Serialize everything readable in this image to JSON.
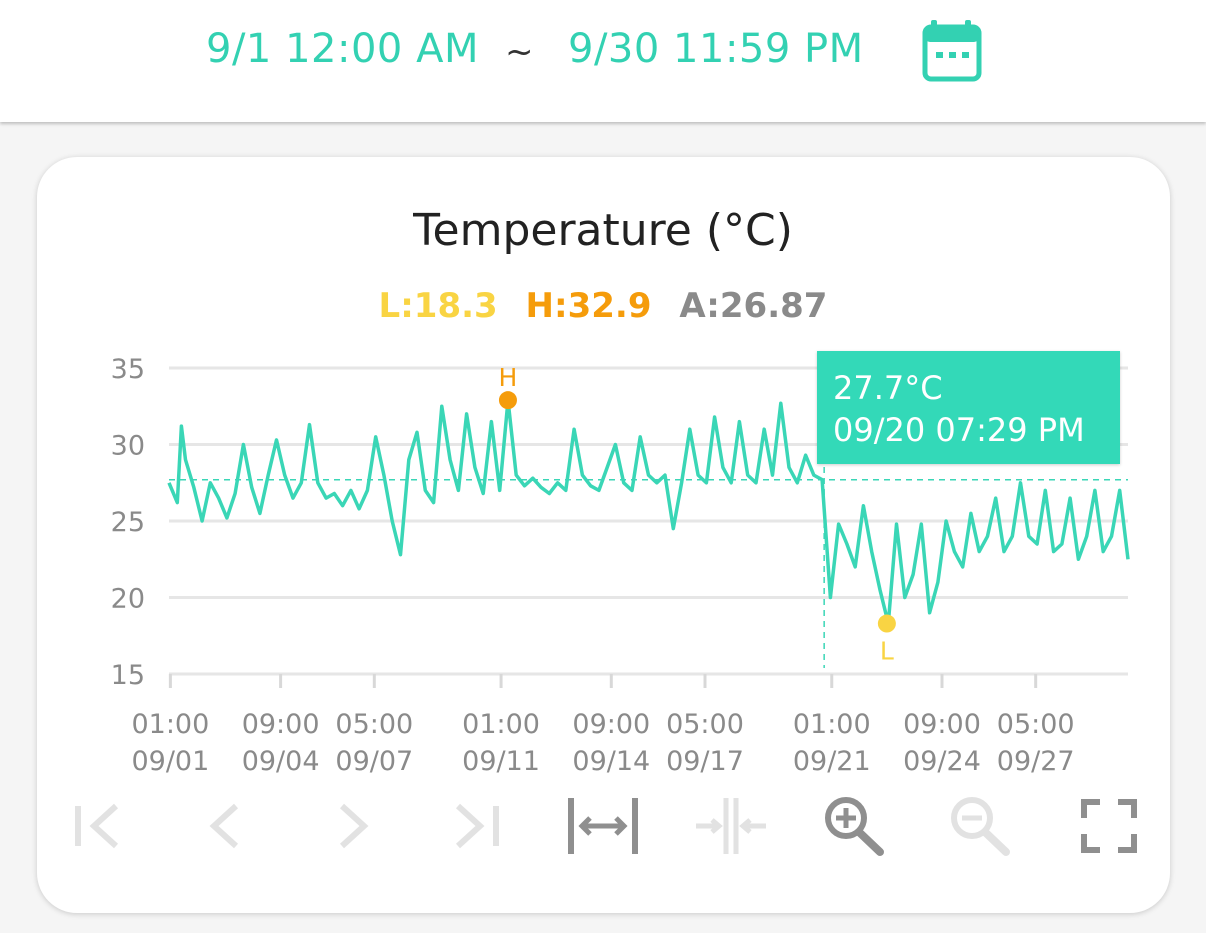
{
  "header": {
    "range_start": "9/1 12:00 AM",
    "range_separator": "~",
    "range_end": "9/30 11:59 PM",
    "calendar_icon": "calendar-icon"
  },
  "stats": {
    "low_label": "L:18.3",
    "high_label": "H:32.9",
    "avg_label": "A:26.87"
  },
  "tooltip": {
    "value": "27.7°C",
    "time": "09/20 07:29 PM"
  },
  "toolbar": {
    "first_icon": "first-page-icon",
    "prev_icon": "chevron-left-icon",
    "next_icon": "chevron-right-icon",
    "last_icon": "last-page-icon",
    "expand_icon": "expand-horizontal-icon",
    "shrink_icon": "shrink-horizontal-icon",
    "zoom_in_icon": "zoom-in-icon",
    "zoom_out_icon": "zoom-out-icon",
    "fullscreen_icon": "fullscreen-icon"
  },
  "colors": {
    "accent": "#33d1b2",
    "line": "#3ad6b6",
    "low": "#f9d443",
    "high": "#f59c0b",
    "avg": "#8a8a8a",
    "grid": "#e6e6e6",
    "axis_text": "#8a8a8a"
  },
  "chart_data": {
    "type": "line",
    "title": "Temperature (°C)",
    "xlabel": "",
    "ylabel": "",
    "ylim": [
      15,
      35
    ],
    "yticks": [
      15,
      20,
      25,
      30,
      35
    ],
    "xlim": [
      "2024-09-01 00:00",
      "2024-09-30 00:00"
    ],
    "xticks": [
      {
        "x": "2024-09-01 01:00",
        "line1": "01:00",
        "line2": "09/01"
      },
      {
        "x": "2024-09-04 09:00",
        "line1": "09:00",
        "line2": "09/04"
      },
      {
        "x": "2024-09-07 05:00",
        "line1": "05:00",
        "line2": "09/07"
      },
      {
        "x": "2024-09-11 01:00",
        "line1": "01:00",
        "line2": "09/11"
      },
      {
        "x": "2024-09-14 09:00",
        "line1": "09:00",
        "line2": "09/14"
      },
      {
        "x": "2024-09-17 05:00",
        "line1": "05:00",
        "line2": "09/17"
      },
      {
        "x": "2024-09-21 01:00",
        "line1": "01:00",
        "line2": "09/21"
      },
      {
        "x": "2024-09-24 09:00",
        "line1": "09:00",
        "line2": "09/24"
      },
      {
        "x": "2024-09-27 05:00",
        "line1": "05:00",
        "line2": "09/27"
      }
    ],
    "grid": true,
    "legend": "none",
    "average": 26.87,
    "low": {
      "x": "2024-09-22 17:00",
      "y": 18.3,
      "label": "L"
    },
    "high": {
      "x": "2024-09-11 06:00",
      "y": 32.9,
      "label": "H"
    },
    "crosshair": {
      "x": "2024-09-20 19:29",
      "y": 27.7
    },
    "series": [
      {
        "x": [
          "2024-09-01 00:00",
          "2024-09-01 06:00",
          "2024-09-01 09:00",
          "2024-09-01 12:00",
          "2024-09-01 18:00",
          "2024-09-02 00:00",
          "2024-09-02 06:00",
          "2024-09-02 12:00",
          "2024-09-02 18:00",
          "2024-09-03 00:00",
          "2024-09-03 06:00",
          "2024-09-03 12:00",
          "2024-09-03 18:00",
          "2024-09-04 00:00",
          "2024-09-04 06:00",
          "2024-09-04 12:00",
          "2024-09-04 18:00",
          "2024-09-05 00:00",
          "2024-09-05 06:00",
          "2024-09-05 12:00",
          "2024-09-05 18:00",
          "2024-09-06 00:00",
          "2024-09-06 06:00",
          "2024-09-06 12:00",
          "2024-09-06 18:00",
          "2024-09-07 00:00",
          "2024-09-07 06:00",
          "2024-09-07 12:00",
          "2024-09-07 18:00",
          "2024-09-08 00:00",
          "2024-09-08 06:00",
          "2024-09-08 12:00",
          "2024-09-08 18:00",
          "2024-09-09 00:00",
          "2024-09-09 06:00",
          "2024-09-09 12:00",
          "2024-09-09 18:00",
          "2024-09-10 00:00",
          "2024-09-10 06:00",
          "2024-09-10 12:00",
          "2024-09-10 18:00",
          "2024-09-11 00:00",
          "2024-09-11 06:00",
          "2024-09-11 12:00",
          "2024-09-11 18:00",
          "2024-09-12 00:00",
          "2024-09-12 06:00",
          "2024-09-12 12:00",
          "2024-09-12 18:00",
          "2024-09-13 00:00",
          "2024-09-13 06:00",
          "2024-09-13 12:00",
          "2024-09-13 18:00",
          "2024-09-14 00:00",
          "2024-09-14 06:00",
          "2024-09-14 12:00",
          "2024-09-14 18:00",
          "2024-09-15 00:00",
          "2024-09-15 06:00",
          "2024-09-15 12:00",
          "2024-09-15 18:00",
          "2024-09-16 00:00",
          "2024-09-16 06:00",
          "2024-09-16 12:00",
          "2024-09-16 18:00",
          "2024-09-17 00:00",
          "2024-09-17 06:00",
          "2024-09-17 12:00",
          "2024-09-17 18:00",
          "2024-09-18 00:00",
          "2024-09-18 06:00",
          "2024-09-18 12:00",
          "2024-09-18 18:00",
          "2024-09-19 00:00",
          "2024-09-19 06:00",
          "2024-09-19 12:00",
          "2024-09-19 18:00",
          "2024-09-20 00:00",
          "2024-09-20 06:00",
          "2024-09-20 12:00",
          "2024-09-20 18:00",
          "2024-09-21 00:00",
          "2024-09-21 06:00",
          "2024-09-21 12:00",
          "2024-09-21 18:00",
          "2024-09-22 00:00",
          "2024-09-22 06:00",
          "2024-09-22 12:00",
          "2024-09-22 18:00",
          "2024-09-23 00:00",
          "2024-09-23 06:00",
          "2024-09-23 12:00",
          "2024-09-23 18:00",
          "2024-09-24 00:00",
          "2024-09-24 06:00",
          "2024-09-24 12:00",
          "2024-09-24 18:00",
          "2024-09-25 00:00",
          "2024-09-25 06:00",
          "2024-09-25 12:00",
          "2024-09-25 18:00",
          "2024-09-26 00:00",
          "2024-09-26 06:00",
          "2024-09-26 12:00",
          "2024-09-26 18:00",
          "2024-09-27 00:00",
          "2024-09-27 06:00",
          "2024-09-27 12:00",
          "2024-09-27 18:00",
          "2024-09-28 00:00",
          "2024-09-28 06:00",
          "2024-09-28 12:00",
          "2024-09-28 18:00",
          "2024-09-29 00:00",
          "2024-09-29 06:00",
          "2024-09-29 12:00",
          "2024-09-29 18:00",
          "2024-09-30 00:00"
        ],
        "values": [
          27.5,
          26.2,
          31.2,
          29.0,
          27.2,
          25.0,
          27.5,
          26.5,
          25.2,
          26.8,
          30.0,
          27.2,
          25.5,
          28.0,
          30.3,
          28.0,
          26.5,
          27.5,
          31.3,
          27.5,
          26.5,
          26.8,
          26.0,
          27.0,
          25.8,
          27.0,
          30.5,
          28.0,
          25.0,
          22.8,
          29.0,
          30.8,
          27.0,
          26.2,
          32.5,
          29.0,
          27.0,
          32.0,
          28.5,
          26.8,
          31.5,
          27.0,
          32.9,
          28.0,
          27.3,
          27.8,
          27.2,
          26.8,
          27.5,
          27.0,
          31.0,
          28.0,
          27.3,
          27.0,
          28.5,
          30.0,
          27.5,
          27.0,
          30.5,
          28.0,
          27.5,
          28.0,
          24.5,
          27.5,
          31.0,
          28.0,
          27.5,
          31.8,
          28.5,
          27.5,
          31.5,
          28.0,
          27.5,
          31.0,
          28.0,
          32.7,
          28.5,
          27.5,
          29.3,
          28.0,
          27.7,
          20.0,
          24.8,
          23.5,
          22.0,
          26.0,
          23.0,
          20.5,
          18.3,
          24.8,
          20.0,
          21.5,
          24.8,
          19.0,
          21.0,
          25.0,
          23.0,
          22.0,
          25.5,
          23.0,
          24.0,
          26.5,
          23.0,
          24.0,
          27.5,
          24.0,
          23.5,
          27.0,
          23.0,
          23.5,
          26.5,
          22.5,
          24.0,
          27.0,
          23.0,
          24.0,
          27.0,
          22.5
        ]
      }
    ]
  }
}
